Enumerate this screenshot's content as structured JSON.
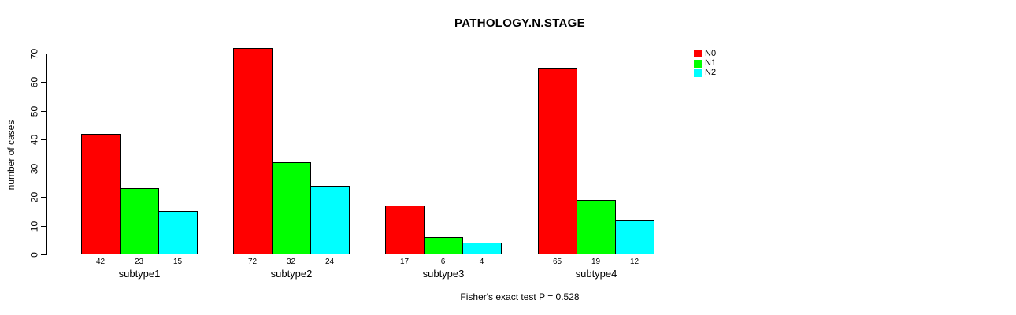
{
  "chart_data": {
    "type": "bar",
    "title": "PATHOLOGY.N.STAGE",
    "ylabel": "number of cases",
    "xlabel": "",
    "annotation": "Fisher's exact test P = 0.528",
    "categories": [
      "subtype1",
      "subtype2",
      "subtype3",
      "subtype4"
    ],
    "series": [
      {
        "name": "N0",
        "color": "#ff0000",
        "values": [
          42,
          72,
          17,
          65
        ]
      },
      {
        "name": "N1",
        "color": "#00ff00",
        "values": [
          23,
          32,
          6,
          19
        ]
      },
      {
        "name": "N2",
        "color": "#00ffff",
        "values": [
          15,
          24,
          4,
          12
        ]
      }
    ],
    "yticks": [
      0,
      10,
      20,
      30,
      40,
      50,
      60,
      70
    ],
    "ylim": [
      0,
      70
    ],
    "bar_value_labels_shown": true,
    "grid": false,
    "legend_position": "top-right",
    "background_color": "#ffffff",
    "axis_color": "#000000"
  }
}
